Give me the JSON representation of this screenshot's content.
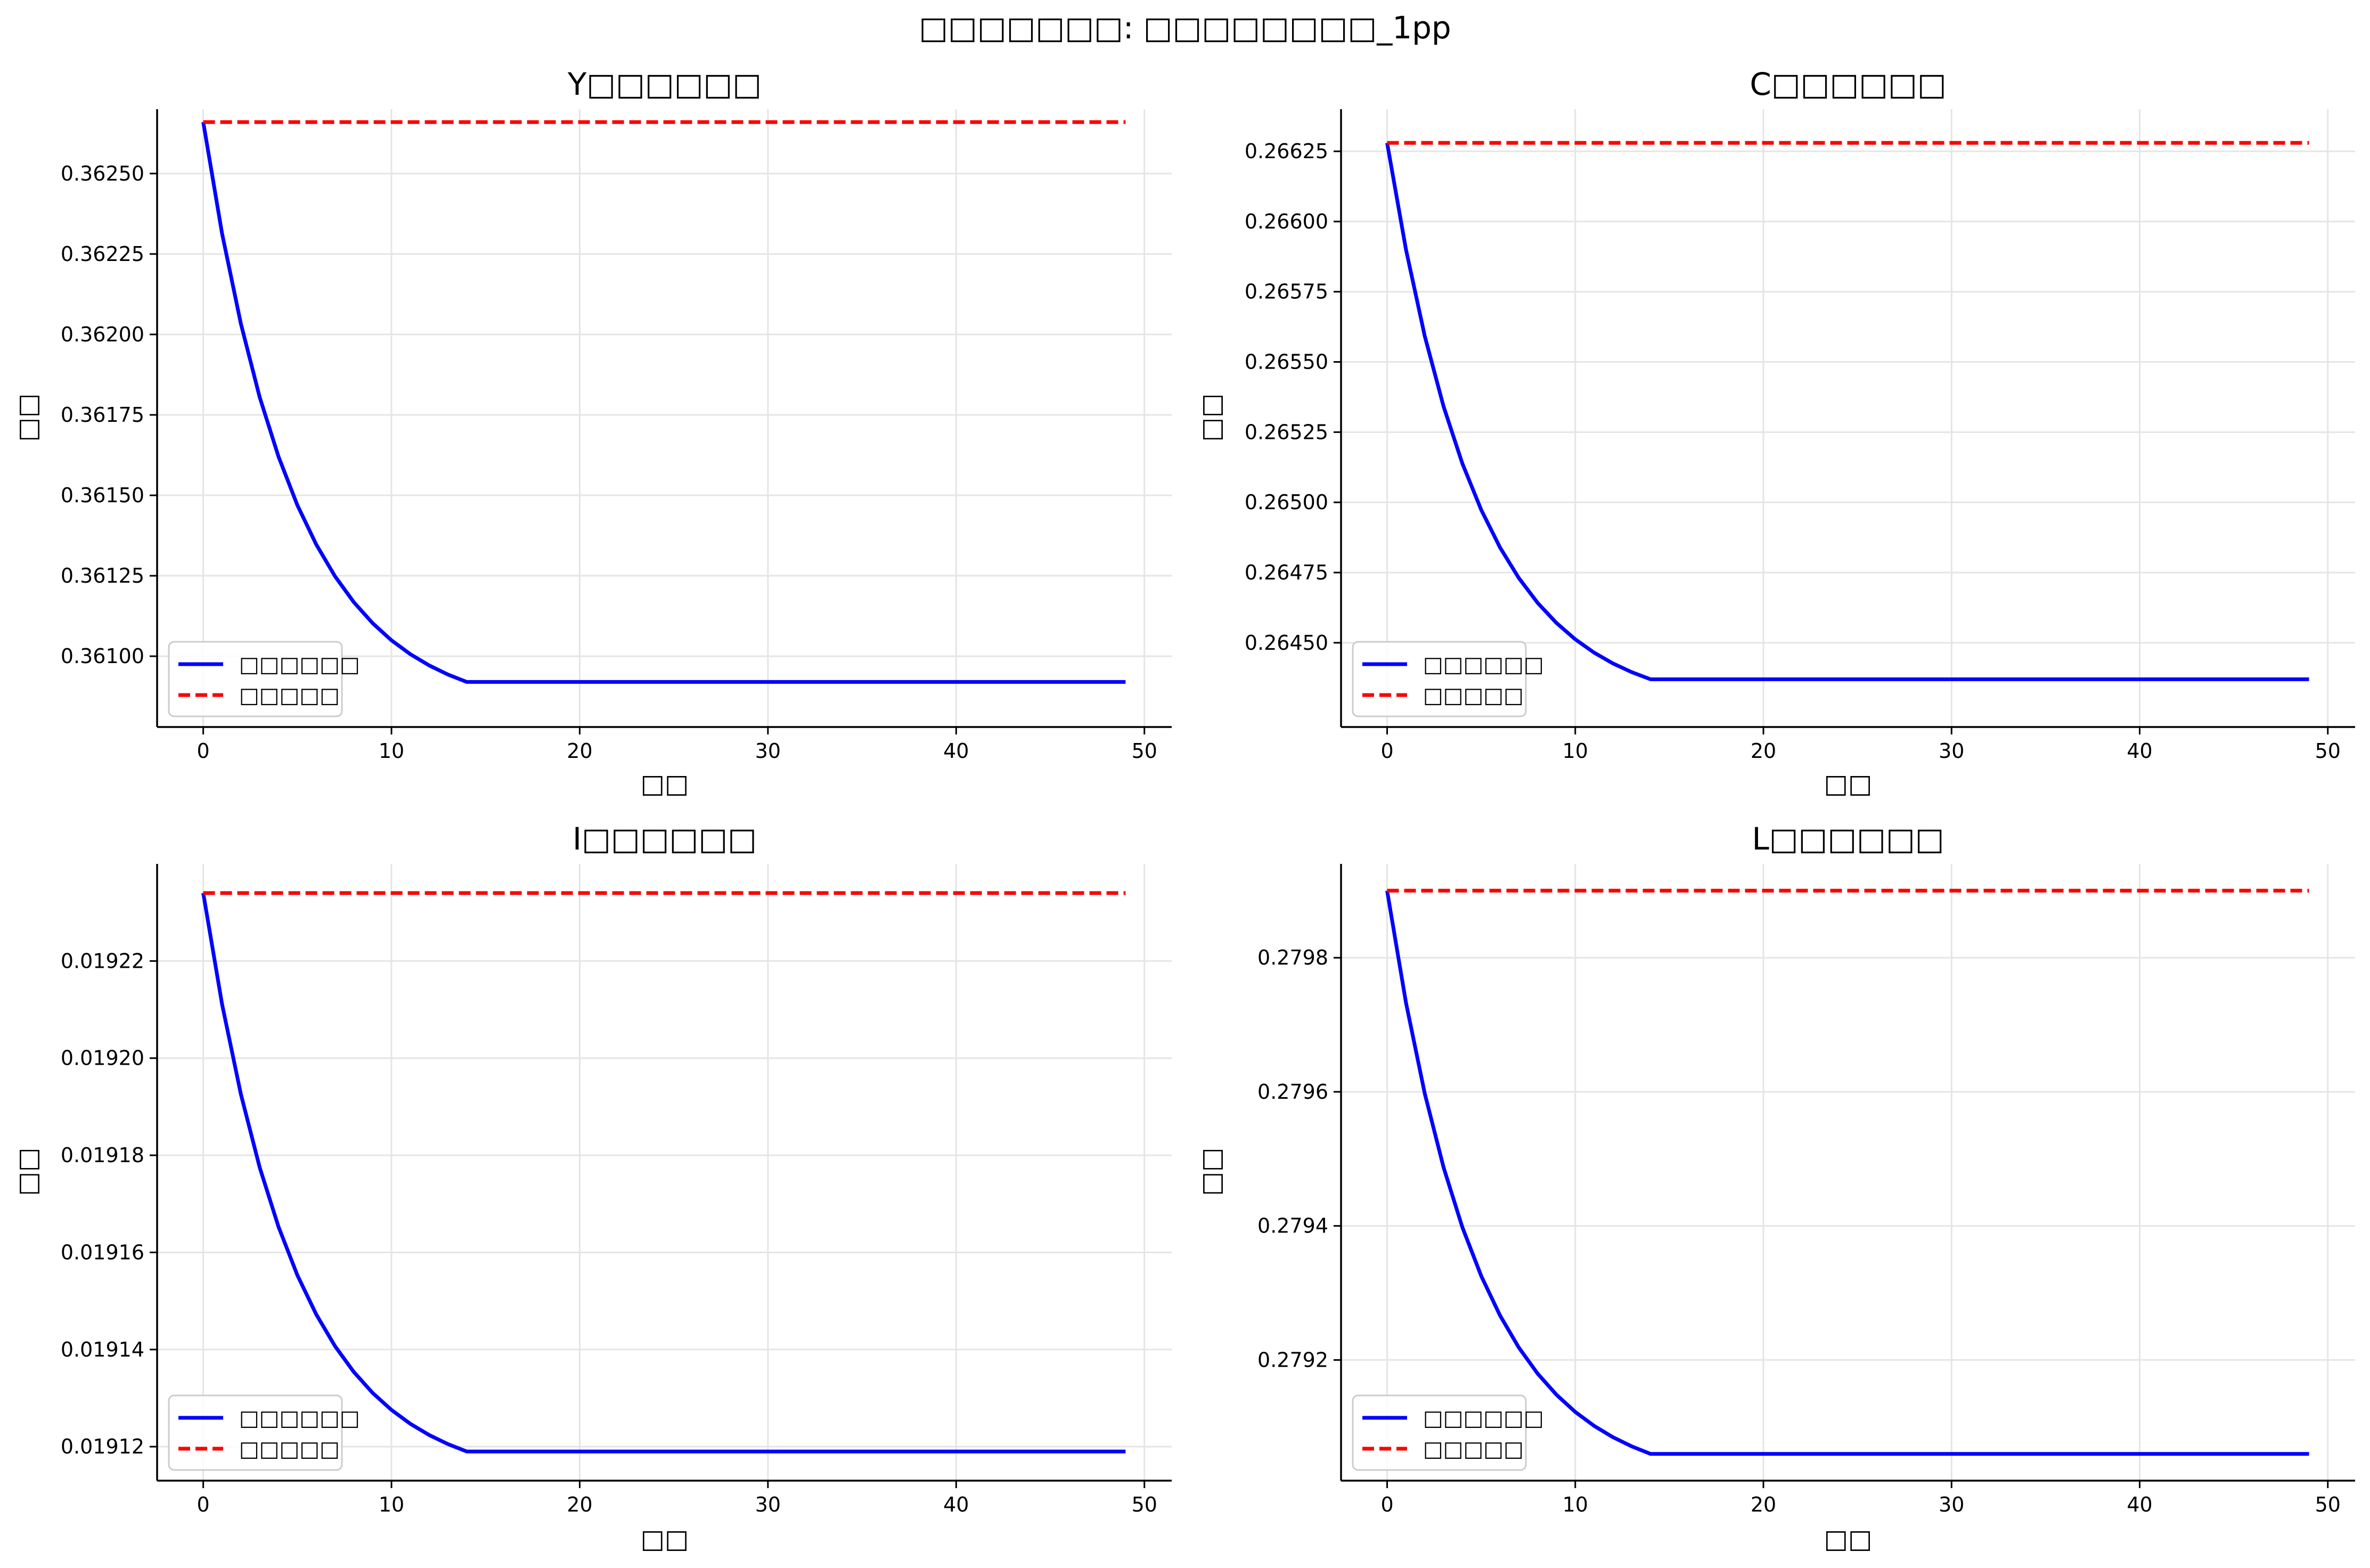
{
  "figure": {
    "suptitle": "□□□□□□□: □□□□□□□□_1pp"
  },
  "colors": {
    "path_line": "#0000ff",
    "steady_line": "#ff0000"
  },
  "legend": {
    "path_label": "□□□□□□",
    "steady_label": "□□□□□",
    "placement": "lower-left"
  },
  "chart_data": [
    {
      "type": "line",
      "title": "Y□□□□□□",
      "xlabel": "□□",
      "ylabel": "□□",
      "grid": true,
      "xlim": [
        -2.45,
        51.45
      ],
      "ylim": [
        0.36078,
        0.3627
      ],
      "xticks": [
        0,
        10,
        20,
        30,
        40,
        50
      ],
      "yticks": [
        0.361,
        0.36125,
        0.3615,
        0.36175,
        0.362,
        0.36225,
        0.3625
      ],
      "ytick_labels": [
        "0.36100",
        "0.36125",
        "0.36150",
        "0.36175",
        "0.36200",
        "0.36225",
        "0.36250"
      ],
      "series": [
        {
          "name": "□□□□□□",
          "style": "solid",
          "start": 0.36266,
          "end": 0.36092,
          "settle": 14,
          "n": 50
        },
        {
          "name": "□□□□□",
          "style": "dashed",
          "value": 0.36266,
          "n": 50
        }
      ]
    },
    {
      "type": "line",
      "title": "C□□□□□□",
      "xlabel": "□□",
      "ylabel": "□□",
      "grid": true,
      "xlim": [
        -2.45,
        51.45
      ],
      "ylim": [
        0.2642,
        0.2664
      ],
      "xticks": [
        0,
        10,
        20,
        30,
        40,
        50
      ],
      "yticks": [
        0.2645,
        0.26475,
        0.265,
        0.26525,
        0.2655,
        0.26575,
        0.266,
        0.26625
      ],
      "ytick_labels": [
        "0.26450",
        "0.26475",
        "0.26500",
        "0.26525",
        "0.26550",
        "0.26575",
        "0.26600",
        "0.26625"
      ],
      "series": [
        {
          "name": "□□□□□□",
          "style": "solid",
          "start": 0.26628,
          "end": 0.26437,
          "settle": 14,
          "n": 50
        },
        {
          "name": "□□□□□",
          "style": "dashed",
          "value": 0.26628,
          "n": 50
        }
      ]
    },
    {
      "type": "line",
      "title": "I□□□□□□",
      "xlabel": "□□",
      "ylabel": "□□",
      "grid": true,
      "xlim": [
        -2.45,
        51.45
      ],
      "ylim": [
        0.019113,
        0.01924
      ],
      "xticks": [
        0,
        10,
        20,
        30,
        40,
        50
      ],
      "yticks": [
        0.01912,
        0.01914,
        0.01916,
        0.01918,
        0.0192,
        0.01922
      ],
      "ytick_labels": [
        "0.01912",
        "0.01914",
        "0.01916",
        "0.01918",
        "0.01920",
        "0.01922"
      ],
      "series": [
        {
          "name": "□□□□□□",
          "style": "solid",
          "start": 0.019234,
          "end": 0.019119,
          "settle": 14,
          "n": 50
        },
        {
          "name": "□□□□□",
          "style": "dashed",
          "value": 0.019234,
          "n": 50
        }
      ]
    },
    {
      "type": "line",
      "title": "L□□□□□□",
      "xlabel": "□□",
      "ylabel": "□□",
      "grid": true,
      "xlim": [
        -2.45,
        51.45
      ],
      "ylim": [
        0.27902,
        0.27994
      ],
      "xticks": [
        0,
        10,
        20,
        30,
        40,
        50
      ],
      "yticks": [
        0.2792,
        0.2794,
        0.2796,
        0.2798
      ],
      "ytick_labels": [
        "0.2792",
        "0.2794",
        "0.2796",
        "0.2798"
      ],
      "series": [
        {
          "name": "□□□□□□",
          "style": "solid",
          "start": 0.2799,
          "end": 0.27906,
          "settle": 14,
          "n": 50
        },
        {
          "name": "□□□□□",
          "style": "dashed",
          "value": 0.2799,
          "n": 50
        }
      ]
    }
  ]
}
